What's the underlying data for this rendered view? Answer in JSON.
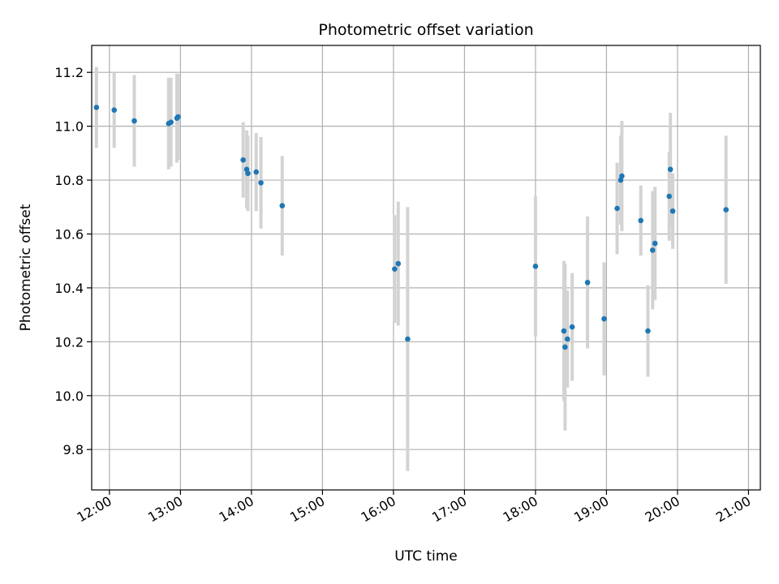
{
  "chart_data": {
    "type": "scatter",
    "title": "Photometric offset variation",
    "xlabel": "UTC time",
    "ylabel": "Photometric offset",
    "xlim": [
      "11:45",
      "21:10"
    ],
    "ylim": [
      9.65,
      11.3
    ],
    "x_ticks": [
      "12:00",
      "13:00",
      "14:00",
      "15:00",
      "16:00",
      "17:00",
      "18:00",
      "19:00",
      "20:00",
      "21:00"
    ],
    "y_ticks": [
      "9.8",
      "10.0",
      "10.2",
      "10.4",
      "10.6",
      "10.8",
      "11.0",
      "11.2"
    ],
    "grid": true,
    "legend": "none",
    "colors": {
      "point": "#1f77b4",
      "errorbar": "#d3d3d3",
      "grid": "#b0b0b0"
    },
    "points": [
      {
        "x": "11:49",
        "y": 11.07,
        "err": 0.15
      },
      {
        "x": "12:04",
        "y": 11.06,
        "err": 0.14
      },
      {
        "x": "12:21",
        "y": 11.02,
        "err": 0.17
      },
      {
        "x": "12:50",
        "y": 11.01,
        "err": 0.17
      },
      {
        "x": "12:52",
        "y": 11.015,
        "err": 0.165
      },
      {
        "x": "12:57",
        "y": 11.03,
        "err": 0.165
      },
      {
        "x": "12:58",
        "y": 11.035,
        "err": 0.16
      },
      {
        "x": "13:53",
        "y": 10.875,
        "err": 0.14
      },
      {
        "x": "13:56",
        "y": 10.84,
        "err": 0.145
      },
      {
        "x": "13:57",
        "y": 10.825,
        "err": 0.14
      },
      {
        "x": "14:04",
        "y": 10.83,
        "err": 0.145
      },
      {
        "x": "14:08",
        "y": 10.79,
        "err": 0.17
      },
      {
        "x": "14:26",
        "y": 10.705,
        "err": 0.185
      },
      {
        "x": "16:01",
        "y": 10.47,
        "err": 0.2
      },
      {
        "x": "16:04",
        "y": 10.49,
        "err": 0.23
      },
      {
        "x": "16:12",
        "y": 10.21,
        "err": 0.49
      },
      {
        "x": "18:00",
        "y": 10.48,
        "err": 0.26
      },
      {
        "x": "18:24",
        "y": 10.24,
        "err": 0.26
      },
      {
        "x": "18:25",
        "y": 10.18,
        "err": 0.31
      },
      {
        "x": "18:27",
        "y": 10.21,
        "err": 0.18
      },
      {
        "x": "18:31",
        "y": 10.255,
        "err": 0.2
      },
      {
        "x": "18:44",
        "y": 10.42,
        "err": 0.245
      },
      {
        "x": "18:58",
        "y": 10.285,
        "err": 0.21
      },
      {
        "x": "19:09",
        "y": 10.695,
        "err": 0.17
      },
      {
        "x": "19:12",
        "y": 10.8,
        "err": 0.165
      },
      {
        "x": "19:13",
        "y": 10.815,
        "err": 0.205
      },
      {
        "x": "19:29",
        "y": 10.65,
        "err": 0.13
      },
      {
        "x": "19:35",
        "y": 10.24,
        "err": 0.17
      },
      {
        "x": "19:39",
        "y": 10.54,
        "err": 0.22
      },
      {
        "x": "19:41",
        "y": 10.565,
        "err": 0.21
      },
      {
        "x": "19:53",
        "y": 10.74,
        "err": 0.165
      },
      {
        "x": "19:54",
        "y": 10.84,
        "err": 0.21
      },
      {
        "x": "19:56",
        "y": 10.685,
        "err": 0.14
      },
      {
        "x": "20:41",
        "y": 10.69,
        "err": 0.275
      }
    ]
  }
}
